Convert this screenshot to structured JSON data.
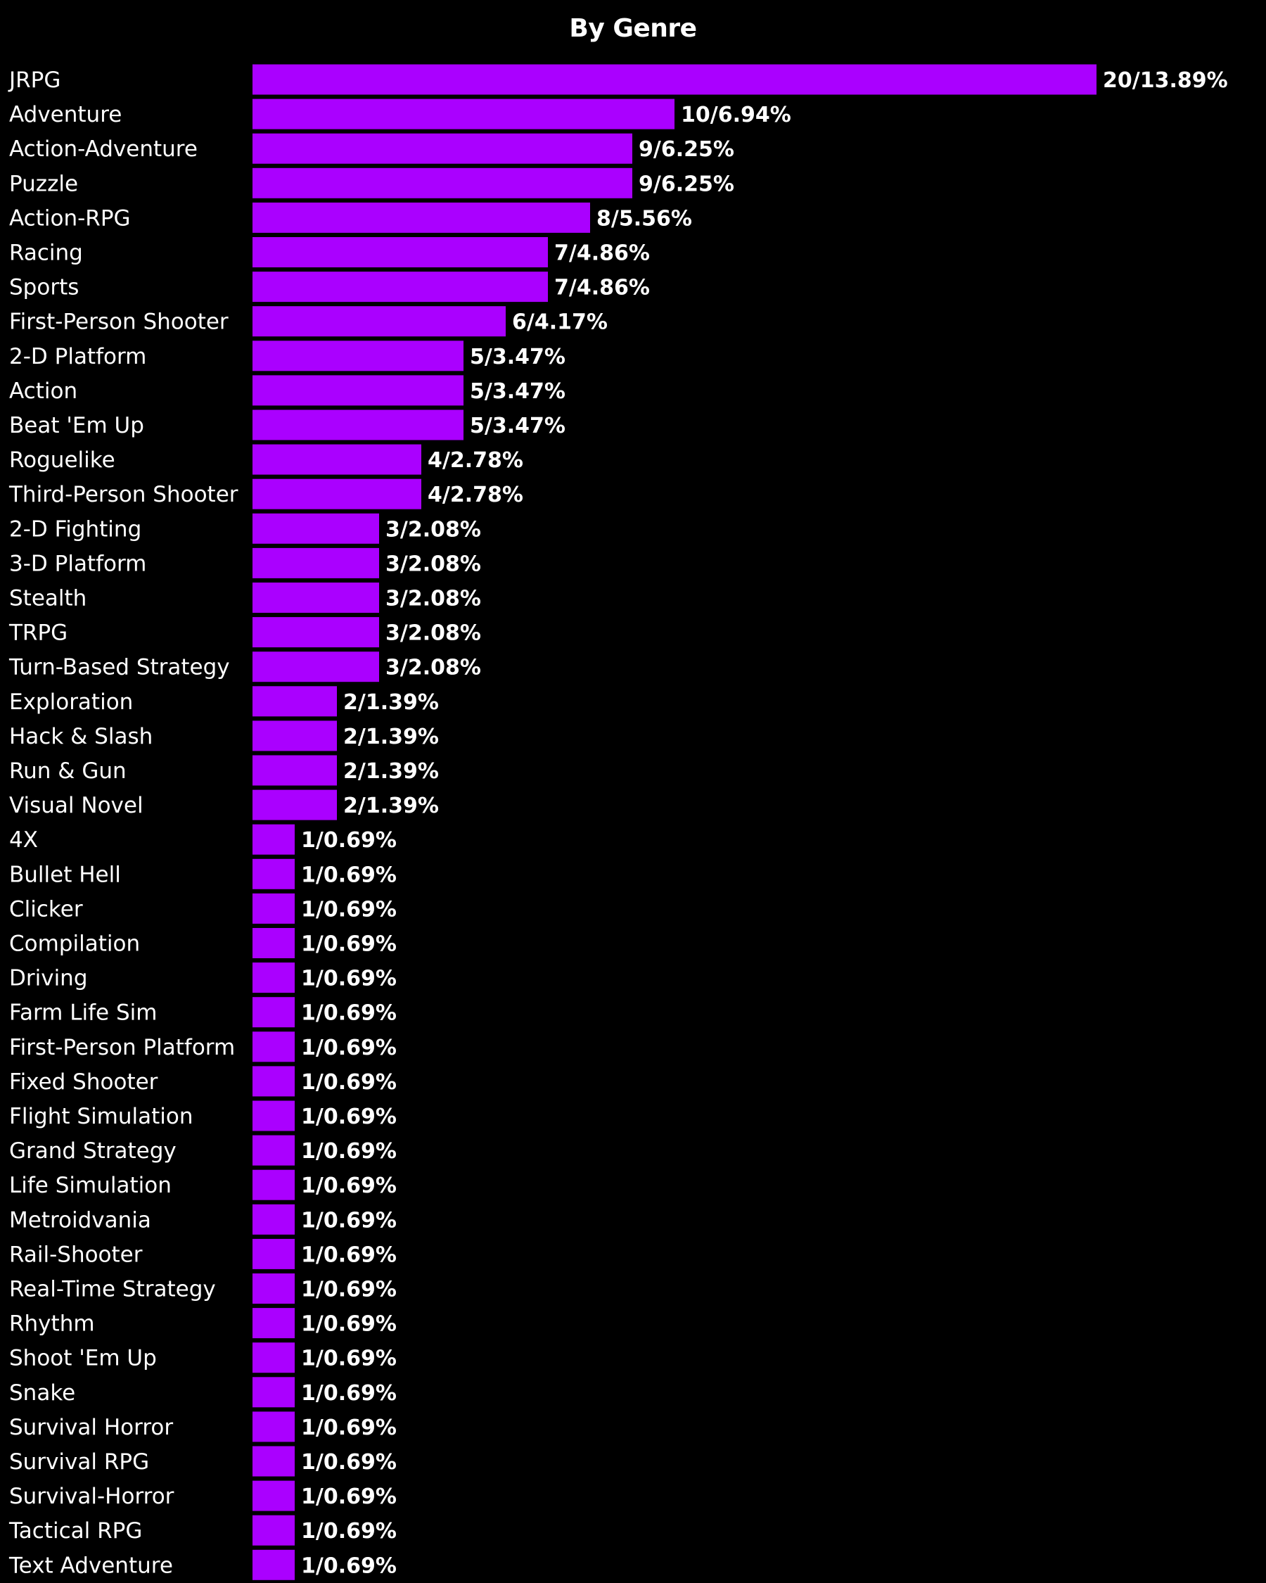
{
  "chart_data": {
    "type": "bar",
    "orientation": "horizontal",
    "title": "By Genre",
    "bar_color": "#aa00ff",
    "background": "#000000",
    "grid": false,
    "legend": "none",
    "xlim": [
      0,
      20
    ],
    "categories": [
      "JRPG",
      "Adventure",
      "Action-Adventure",
      "Puzzle",
      "Action-RPG",
      "Racing",
      "Sports",
      "First-Person Shooter",
      "2-D Platform",
      "Action",
      "Beat 'Em Up",
      "Roguelike",
      "Third-Person Shooter",
      "2-D Fighting",
      "3-D Platform",
      "Stealth",
      "TRPG",
      "Turn-Based Strategy",
      "Exploration",
      "Hack & Slash",
      "Run & Gun",
      "Visual Novel",
      "4X",
      "Bullet Hell",
      "Clicker",
      "Compilation",
      "Driving",
      "Farm Life Sim",
      "First-Person Platform",
      "Fixed Shooter",
      "Flight Simulation",
      "Grand Strategy",
      "Life Simulation",
      "Metroidvania",
      "Rail-Shooter",
      "Real-Time Strategy",
      "Rhythm",
      "Shoot 'Em Up",
      "Snake",
      "Survival Horror",
      "Survival RPG",
      "Survival-Horror",
      "Tactical RPG",
      "Text Adventure"
    ],
    "values": [
      20,
      10,
      9,
      9,
      8,
      7,
      7,
      6,
      5,
      5,
      5,
      4,
      4,
      3,
      3,
      3,
      3,
      3,
      2,
      2,
      2,
      2,
      1,
      1,
      1,
      1,
      1,
      1,
      1,
      1,
      1,
      1,
      1,
      1,
      1,
      1,
      1,
      1,
      1,
      1,
      1,
      1,
      1,
      1
    ],
    "value_labels": [
      "20/13.89%",
      "10/6.94%",
      "9/6.25%",
      "9/6.25%",
      "8/5.56%",
      "7/4.86%",
      "7/4.86%",
      "6/4.17%",
      "5/3.47%",
      "5/3.47%",
      "5/3.47%",
      "4/2.78%",
      "4/2.78%",
      "3/2.08%",
      "3/2.08%",
      "3/2.08%",
      "3/2.08%",
      "3/2.08%",
      "2/1.39%",
      "2/1.39%",
      "2/1.39%",
      "2/1.39%",
      "1/0.69%",
      "1/0.69%",
      "1/0.69%",
      "1/0.69%",
      "1/0.69%",
      "1/0.69%",
      "1/0.69%",
      "1/0.69%",
      "1/0.69%",
      "1/0.69%",
      "1/0.69%",
      "1/0.69%",
      "1/0.69%",
      "1/0.69%",
      "1/0.69%",
      "1/0.69%",
      "1/0.69%",
      "1/0.69%",
      "1/0.69%",
      "1/0.69%",
      "1/0.69%",
      "1/0.69%"
    ]
  }
}
